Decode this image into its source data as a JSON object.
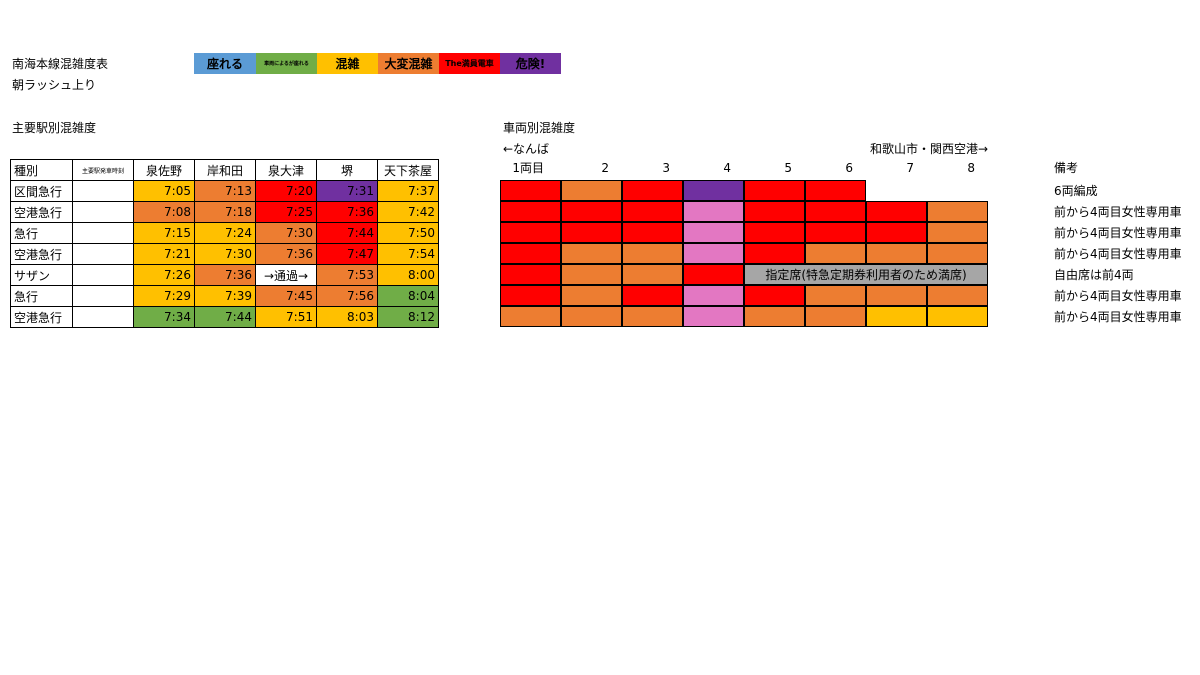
{
  "title": "南海本線混雑度表",
  "subtitle": "朝ラッシュ上り",
  "legend": [
    {
      "label": "座れる",
      "color": "#5b9bd5",
      "size": "12px"
    },
    {
      "label": "車両によるが座れる",
      "color": "#70ad47",
      "size": "5px"
    },
    {
      "label": "混雑",
      "color": "#ffc000",
      "size": "12px"
    },
    {
      "label": "大変混雑",
      "color": "#ed7d31",
      "size": "12px"
    },
    {
      "label": "The満員電車",
      "color": "#ff0000",
      "size": "8px"
    },
    {
      "label": "危険!",
      "color": "#7030a0",
      "size": "12px"
    }
  ],
  "station_section": {
    "heading": "主要駅別混雑度",
    "headers": [
      "種別",
      "主要駅発車時刻",
      "泉佐野",
      "岸和田",
      "泉大津",
      "堺",
      "天下茶屋"
    ],
    "rows": [
      {
        "type": "区間急行",
        "cells": [
          {
            "v": "7:05",
            "c": "#ffc000"
          },
          {
            "v": "7:13",
            "c": "#ed7d31"
          },
          {
            "v": "7:20",
            "c": "#ff0000"
          },
          {
            "v": "7:31",
            "c": "#7030a0"
          },
          {
            "v": "7:37",
            "c": "#ffc000"
          }
        ]
      },
      {
        "type": "空港急行",
        "cells": [
          {
            "v": "7:08",
            "c": "#ed7d31"
          },
          {
            "v": "7:18",
            "c": "#ed7d31"
          },
          {
            "v": "7:25",
            "c": "#ff0000"
          },
          {
            "v": "7:36",
            "c": "#ff0000"
          },
          {
            "v": "7:42",
            "c": "#ffc000"
          }
        ]
      },
      {
        "type": "急行",
        "cells": [
          {
            "v": "7:15",
            "c": "#ffc000"
          },
          {
            "v": "7:24",
            "c": "#ffc000"
          },
          {
            "v": "7:30",
            "c": "#ed7d31"
          },
          {
            "v": "7:44",
            "c": "#ff0000"
          },
          {
            "v": "7:50",
            "c": "#ffc000"
          }
        ]
      },
      {
        "type": "空港急行",
        "cells": [
          {
            "v": "7:21",
            "c": "#ffc000"
          },
          {
            "v": "7:30",
            "c": "#ffc000"
          },
          {
            "v": "7:36",
            "c": "#ed7d31"
          },
          {
            "v": "7:47",
            "c": "#ff0000"
          },
          {
            "v": "7:54",
            "c": "#ffc000"
          }
        ]
      },
      {
        "type": "サザン",
        "cells": [
          {
            "v": "7:26",
            "c": "#ffc000"
          },
          {
            "v": "7:36",
            "c": "#ed7d31"
          },
          {
            "v": "→通過→",
            "c": "#ffffff"
          },
          {
            "v": "7:53",
            "c": "#ed7d31"
          },
          {
            "v": "8:00",
            "c": "#ffc000"
          }
        ]
      },
      {
        "type": "急行",
        "cells": [
          {
            "v": "7:29",
            "c": "#ffc000"
          },
          {
            "v": "7:39",
            "c": "#ffc000"
          },
          {
            "v": "7:45",
            "c": "#ed7d31"
          },
          {
            "v": "7:56",
            "c": "#ed7d31"
          },
          {
            "v": "8:04",
            "c": "#70ad47"
          }
        ]
      },
      {
        "type": "空港急行",
        "cells": [
          {
            "v": "7:34",
            "c": "#70ad47"
          },
          {
            "v": "7:44",
            "c": "#70ad47"
          },
          {
            "v": "7:51",
            "c": "#ffc000"
          },
          {
            "v": "8:03",
            "c": "#ffc000"
          },
          {
            "v": "8:12",
            "c": "#70ad47"
          }
        ]
      }
    ]
  },
  "car_section": {
    "heading": "車両別混雑度",
    "left_direction": "←なんば",
    "right_direction": "和歌山市・関西空港→",
    "car_labels": [
      "1両目",
      "2",
      "3",
      "4",
      "5",
      "6",
      "7",
      "8"
    ],
    "remarks_header": "備考",
    "rows": [
      {
        "cars": [
          "#ff0000",
          "#ed7d31",
          "#ff0000",
          "#7030a0",
          "#ff0000",
          "#ff0000"
        ],
        "remark": "6両編成"
      },
      {
        "cars": [
          "#ff0000",
          "#ff0000",
          "#ff0000",
          "#e377c2",
          "#ff0000",
          "#ff0000",
          "#ff0000",
          "#ed7d31"
        ],
        "remark": "前から4両目女性専用車"
      },
      {
        "cars": [
          "#ff0000",
          "#ff0000",
          "#ff0000",
          "#e377c2",
          "#ff0000",
          "#ff0000",
          "#ff0000",
          "#ed7d31"
        ],
        "remark": "前から4両目女性専用車"
      },
      {
        "cars": [
          "#ff0000",
          "#ed7d31",
          "#ed7d31",
          "#e377c2",
          "#ff0000",
          "#ed7d31",
          "#ed7d31",
          "#ed7d31"
        ],
        "remark": "前から4両目女性専用車"
      },
      {
        "cars": [
          "#ff0000",
          "#ed7d31",
          "#ed7d31",
          "#ff0000"
        ],
        "reserved": {
          "label": "指定席(特急定期券利用者のため満席)",
          "color": "#a6a6a6"
        },
        "remark": "自由席は前4両"
      },
      {
        "cars": [
          "#ff0000",
          "#ed7d31",
          "#ff0000",
          "#e377c2",
          "#ff0000",
          "#ed7d31",
          "#ed7d31",
          "#ed7d31"
        ],
        "remark": "前から4両目女性専用車"
      },
      {
        "cars": [
          "#ed7d31",
          "#ed7d31",
          "#ed7d31",
          "#e377c2",
          "#ed7d31",
          "#ed7d31",
          "#ffc000",
          "#ffc000"
        ],
        "remark": "前から4両目女性専用車"
      }
    ]
  }
}
